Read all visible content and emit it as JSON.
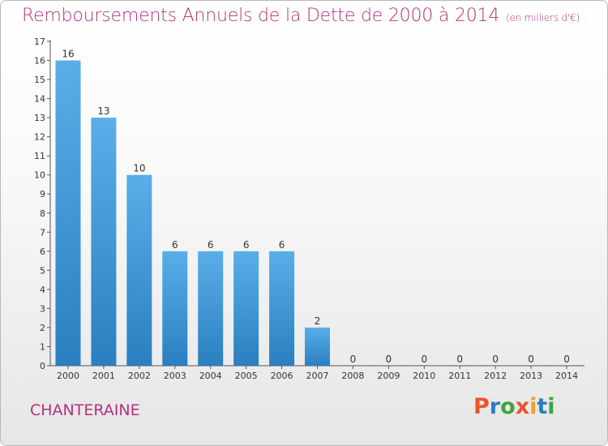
{
  "title": "Remboursements Annuels de la Dette de 2000 à 2014",
  "unit": "(en milliers d'€)",
  "commune": "CHANTERAINE",
  "logo_text": "Proxiti",
  "colors": {
    "title": "#b5307a",
    "bar_top": "#5aaee8",
    "bar_bottom": "#2a7fc0",
    "logo_letters": [
      "#e8562a",
      "#2a7fc0",
      "#3aa63a",
      "#e8562a",
      "#e8a02a",
      "#2a7fc0",
      "#3aa63a"
    ]
  },
  "chart_data": {
    "type": "bar",
    "title": "Remboursements Annuels de la Dette de 2000 à 2014",
    "categories": [
      "2000",
      "2001",
      "2002",
      "2003",
      "2004",
      "2005",
      "2006",
      "2007",
      "2008",
      "2009",
      "2010",
      "2011",
      "2012",
      "2013",
      "2014"
    ],
    "values": [
      16,
      13,
      10,
      6,
      6,
      6,
      6,
      2,
      0,
      0,
      0,
      0,
      0,
      0,
      0
    ],
    "ylim": [
      0,
      17
    ],
    "yticks": [
      0,
      1,
      2,
      3,
      4,
      5,
      6,
      7,
      8,
      9,
      10,
      11,
      12,
      13,
      14,
      15,
      16,
      17
    ],
    "grid": false,
    "data_labels": true
  }
}
